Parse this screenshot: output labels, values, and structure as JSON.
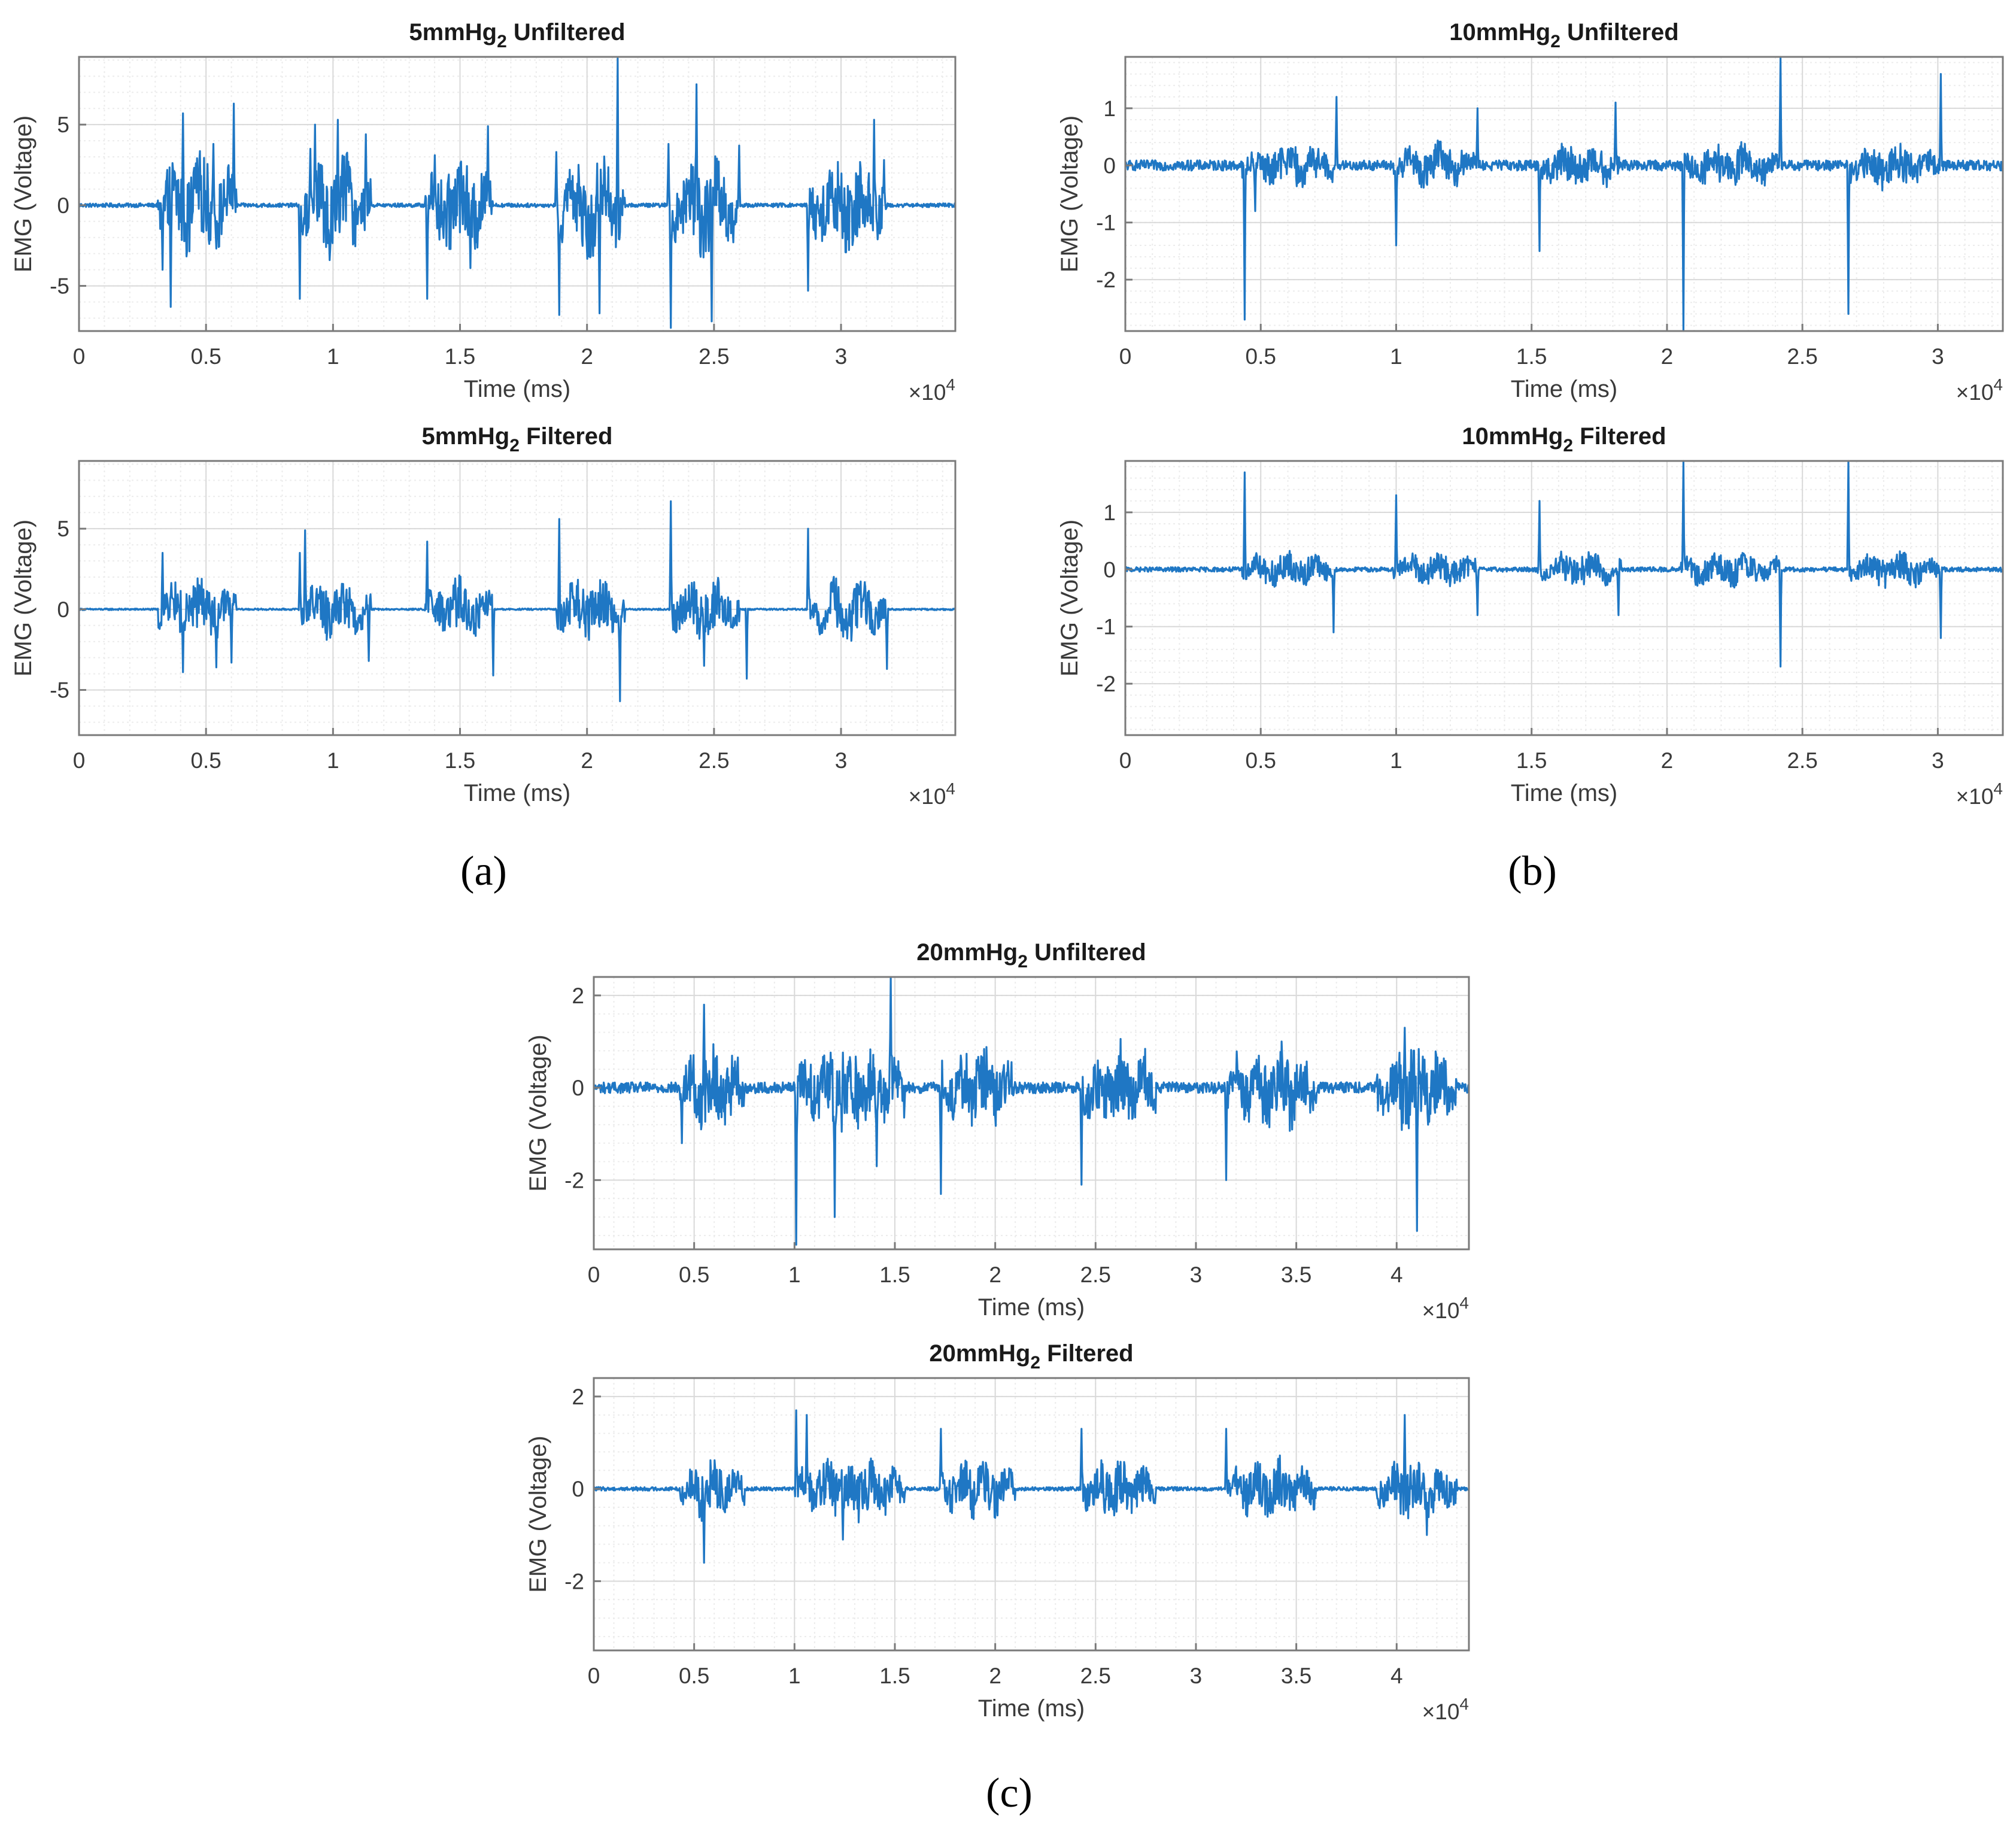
{
  "figure": {
    "panel_labels": {
      "a": "(a)",
      "b": "(b)",
      "c": "(c)"
    }
  },
  "style": {
    "line_color": "#1f77c4",
    "grid_color": "#d9d9d9",
    "axis_color": "#7a7a7a",
    "background": "#ffffff"
  },
  "chart_data": [
    {
      "id": "p5u",
      "panel": "a",
      "type": "line",
      "title": "5mmHg",
      "title_sub": "2",
      "title_rest": " Unfiltered",
      "xlabel": "Time (ms)",
      "ylabel": "EMG (Voltage)",
      "x_exponent_base": "×10",
      "x_exponent_power": "4",
      "xlim": [
        0,
        34500
      ],
      "ylim": [
        -7.8,
        9.2
      ],
      "xticks": [
        0,
        5000,
        10000,
        15000,
        20000,
        25000,
        30000
      ],
      "xtick_labels": [
        "0",
        "0.5",
        "1",
        "1.5",
        "2",
        "2.5",
        "3"
      ],
      "yticks": [
        -5,
        0,
        5
      ],
      "ytick_labels": [
        "-5",
        "0",
        "5"
      ],
      "bursts": [
        [
          3100,
          6200
        ],
        [
          8700,
          11500
        ],
        [
          13600,
          16300
        ],
        [
          18800,
          21500
        ],
        [
          23300,
          26000
        ],
        [
          28700,
          31800
        ]
      ],
      "burst_amplitude": 2.6,
      "noise": 0.12,
      "peaks": [
        [
          3300,
          -4.0
        ],
        [
          3600,
          -6.3
        ],
        [
          4100,
          5.7
        ],
        [
          4600,
          2.6
        ],
        [
          5300,
          3.8
        ],
        [
          6100,
          6.3
        ],
        [
          8700,
          -5.8
        ],
        [
          9100,
          3.5
        ],
        [
          9300,
          5.0
        ],
        [
          10200,
          5.3
        ],
        [
          10600,
          2.7
        ],
        [
          11300,
          4.4
        ],
        [
          13700,
          -5.8
        ],
        [
          14000,
          3.1
        ],
        [
          15400,
          -3.9
        ],
        [
          16100,
          4.9
        ],
        [
          18800,
          3.3
        ],
        [
          18900,
          -6.8
        ],
        [
          20500,
          -6.7
        ],
        [
          21200,
          9.1
        ],
        [
          23200,
          3.8
        ],
        [
          23300,
          -7.6
        ],
        [
          24300,
          7.5
        ],
        [
          24900,
          -7.2
        ],
        [
          26000,
          3.7
        ],
        [
          28700,
          -5.3
        ],
        [
          31300,
          5.3
        ],
        [
          31700,
          2.8
        ]
      ]
    },
    {
      "id": "p5f",
      "panel": "a",
      "type": "line",
      "title": "5mmHg",
      "title_sub": "2",
      "title_rest": " Filtered",
      "xlabel": "Time (ms)",
      "ylabel": "EMG (Voltage)",
      "x_exponent_base": "×10",
      "x_exponent_power": "4",
      "xlim": [
        0,
        34500
      ],
      "ylim": [
        -7.8,
        9.2
      ],
      "xticks": [
        0,
        5000,
        10000,
        15000,
        20000,
        25000,
        30000
      ],
      "xtick_labels": [
        "0",
        "0.5",
        "1",
        "1.5",
        "2",
        "2.5",
        "3"
      ],
      "yticks": [
        -5,
        0,
        5
      ],
      "ytick_labels": [
        "-5",
        "0",
        "5"
      ],
      "bursts": [
        [
          3100,
          6200
        ],
        [
          8700,
          11500
        ],
        [
          13600,
          16300
        ],
        [
          18800,
          21500
        ],
        [
          23300,
          26000
        ],
        [
          28700,
          31800
        ]
      ],
      "burst_amplitude": 1.6,
      "noise": 0.05,
      "peaks": [
        [
          3300,
          3.5
        ],
        [
          4100,
          -3.9
        ],
        [
          5400,
          -3.6
        ],
        [
          6000,
          -3.3
        ],
        [
          8700,
          3.5
        ],
        [
          8900,
          4.9
        ],
        [
          11400,
          -3.2
        ],
        [
          13700,
          4.2
        ],
        [
          16300,
          -4.1
        ],
        [
          18900,
          5.6
        ],
        [
          21300,
          -5.7
        ],
        [
          23300,
          6.7
        ],
        [
          24600,
          -3.5
        ],
        [
          26300,
          -4.3
        ],
        [
          28700,
          5.0
        ],
        [
          31800,
          -3.7
        ]
      ]
    },
    {
      "id": "p10u",
      "panel": "b",
      "type": "line",
      "title": "10mmHg",
      "title_sub": "2",
      "title_rest": " Unfiltered",
      "xlabel": "Time (ms)",
      "ylabel": "EMG (Voltage)",
      "x_exponent_base": "×10",
      "x_exponent_power": "4",
      "xlim": [
        0,
        32400
      ],
      "ylim": [
        -2.9,
        1.9
      ],
      "xticks": [
        0,
        5000,
        10000,
        15000,
        20000,
        25000,
        30000
      ],
      "xtick_labels": [
        "0",
        "0.5",
        "1",
        "1.5",
        "2",
        "2.5",
        "3"
      ],
      "yticks": [
        -2,
        -1,
        0,
        1
      ],
      "ytick_labels": [
        "-2",
        "-1",
        "0",
        "1"
      ],
      "bursts": [
        [
          4300,
          7700
        ],
        [
          9900,
          13000
        ],
        [
          15200,
          18300
        ],
        [
          20500,
          24200
        ],
        [
          26700,
          30100
        ]
      ],
      "burst_amplitude": 0.3,
      "noise": 0.09,
      "peaks": [
        [
          4400,
          -2.7
        ],
        [
          4800,
          -0.8
        ],
        [
          7800,
          1.2
        ],
        [
          10000,
          -1.4
        ],
        [
          13000,
          1.0
        ],
        [
          15300,
          -1.5
        ],
        [
          18100,
          1.1
        ],
        [
          20600,
          -2.9
        ],
        [
          24200,
          1.9
        ],
        [
          26700,
          -2.6
        ],
        [
          30100,
          1.6
        ]
      ]
    },
    {
      "id": "p10f",
      "panel": "b",
      "type": "line",
      "title": "10mmHg",
      "title_sub": "2",
      "title_rest": " Filtered",
      "xlabel": "Time (ms)",
      "ylabel": "EMG (Voltage)",
      "x_exponent_base": "×10",
      "x_exponent_power": "4",
      "xlim": [
        0,
        32400
      ],
      "ylim": [
        -2.9,
        1.9
      ],
      "xticks": [
        0,
        5000,
        10000,
        15000,
        20000,
        25000,
        30000
      ],
      "xtick_labels": [
        "0",
        "0.5",
        "1",
        "1.5",
        "2",
        "2.5",
        "3"
      ],
      "yticks": [
        -2,
        -1,
        0,
        1
      ],
      "ytick_labels": [
        "-2",
        "-1",
        "0",
        "1"
      ],
      "bursts": [
        [
          4300,
          7700
        ],
        [
          9900,
          13000
        ],
        [
          15200,
          18300
        ],
        [
          20500,
          24200
        ],
        [
          26700,
          30100
        ]
      ],
      "burst_amplitude": 0.25,
      "noise": 0.04,
      "peaks": [
        [
          4400,
          1.7
        ],
        [
          7700,
          -1.1
        ],
        [
          10000,
          1.3
        ],
        [
          13000,
          -0.8
        ],
        [
          15300,
          1.2
        ],
        [
          18200,
          -0.8
        ],
        [
          20600,
          1.9
        ],
        [
          24200,
          -1.7
        ],
        [
          26700,
          1.9
        ],
        [
          30100,
          -1.2
        ]
      ]
    },
    {
      "id": "p20u",
      "panel": "c",
      "type": "line",
      "title": "20mmHg",
      "title_sub": "2",
      "title_rest": " Unfiltered",
      "xlabel": "Time (ms)",
      "ylabel": "EMG (Voltage)",
      "x_exponent_base": "×10",
      "x_exponent_power": "4",
      "xlim": [
        0,
        43600
      ],
      "ylim": [
        -3.5,
        2.4
      ],
      "xticks": [
        0,
        5000,
        10000,
        15000,
        20000,
        25000,
        30000,
        35000,
        40000
      ],
      "xtick_labels": [
        "0",
        "0.5",
        "1",
        "1.5",
        "2",
        "2.5",
        "3",
        "3.5",
        "4"
      ],
      "yticks": [
        -2,
        0,
        2
      ],
      "ytick_labels": [
        "-2",
        "0",
        "2"
      ],
      "bursts": [
        [
          4300,
          7500
        ],
        [
          10000,
          15500
        ],
        [
          17300,
          21000
        ],
        [
          24300,
          28000
        ],
        [
          31500,
          36000
        ],
        [
          39000,
          43000
        ]
      ],
      "burst_amplitude": 0.75,
      "noise": 0.12,
      "peaks": [
        [
          4400,
          -1.2
        ],
        [
          5500,
          1.8
        ],
        [
          10100,
          -3.4
        ],
        [
          12000,
          -2.8
        ],
        [
          14100,
          -1.7
        ],
        [
          14800,
          2.4
        ],
        [
          17300,
          -2.3
        ],
        [
          24300,
          -2.1
        ],
        [
          31500,
          -2.0
        ],
        [
          40400,
          1.3
        ],
        [
          41000,
          -3.1
        ]
      ]
    },
    {
      "id": "p20f",
      "panel": "c",
      "type": "line",
      "title": "20mmHg",
      "title_sub": "2",
      "title_rest": " Filtered",
      "xlabel": "Time (ms)",
      "ylabel": "EMG (Voltage)",
      "x_exponent_base": "×10",
      "x_exponent_power": "4",
      "xlim": [
        0,
        43600
      ],
      "ylim": [
        -3.5,
        2.4
      ],
      "xticks": [
        0,
        5000,
        10000,
        15000,
        20000,
        25000,
        30000,
        35000,
        40000
      ],
      "xtick_labels": [
        "0",
        "0.5",
        "1",
        "1.5",
        "2",
        "2.5",
        "3",
        "3.5",
        "4"
      ],
      "yticks": [
        -2,
        0,
        2
      ],
      "ytick_labels": [
        "-2",
        "0",
        "2"
      ],
      "bursts": [
        [
          4300,
          7500
        ],
        [
          10000,
          15500
        ],
        [
          17300,
          21000
        ],
        [
          24300,
          28000
        ],
        [
          31500,
          36000
        ],
        [
          39000,
          43000
        ]
      ],
      "burst_amplitude": 0.55,
      "noise": 0.04,
      "peaks": [
        [
          5500,
          -1.6
        ],
        [
          10100,
          1.7
        ],
        [
          10600,
          1.6
        ],
        [
          12400,
          -1.1
        ],
        [
          17300,
          1.3
        ],
        [
          24300,
          1.3
        ],
        [
          31500,
          1.3
        ],
        [
          40400,
          1.6
        ],
        [
          41500,
          -1.0
        ]
      ]
    }
  ]
}
